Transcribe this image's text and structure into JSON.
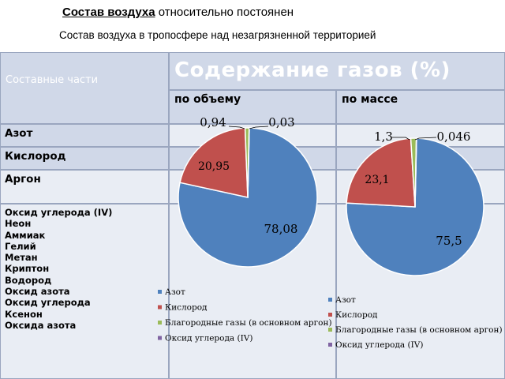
{
  "title": {
    "bold": "Состав воздуха",
    "rest": " относительно постоянен"
  },
  "subtitle": "Состав воздуха в тропосфере над незагрязненной территорией",
  "table": {
    "col_header_components": "Составные части",
    "col_header_gases": "Содержание газов (%)",
    "sub_volume": "по объему",
    "sub_mass": "по массе",
    "rows": [
      "Азот",
      "Кислород",
      "Аргон"
    ],
    "other": [
      "Оксид углерода (IV)",
      "Неон",
      "Аммиак",
      "Гелий",
      "Метан",
      "Криптон",
      "Водород",
      "Оксид азота",
      "Оксид углерода",
      "Ксенон",
      "Оксида азота"
    ]
  },
  "colors": {
    "nitrogen": "#4f81bd",
    "oxygen": "#c0504d",
    "noble": "#9bbb59",
    "co2": "#8064a2"
  },
  "chart_data": [
    {
      "type": "pie",
      "title": "по объему",
      "categories": [
        "Азот",
        "Кислород",
        "Благородные газы (в основном аргон)",
        "Оксид углерода (IV)"
      ],
      "values": [
        78.08,
        20.95,
        0.94,
        0.03
      ],
      "labels": [
        "78,08",
        "20,95",
        "0,94",
        "0,03"
      ],
      "legend": [
        "Азот",
        "Кислород",
        "Благородные газы (в основном аргон)",
        "Оксид углерода (IV)"
      ]
    },
    {
      "type": "pie",
      "title": "по массе",
      "categories": [
        "Азот",
        "Кислород",
        "Благородные газы (в основном аргон)",
        "Оксид углерода (IV)"
      ],
      "values": [
        75.5,
        23.1,
        1.3,
        0.046
      ],
      "labels": [
        "75,5",
        "23,1",
        "1,3",
        "0,046"
      ],
      "legend": [
        "Азот",
        "Кислород",
        "Благородные газы (в основном аргон)",
        "Оксид углерода (IV)"
      ]
    }
  ]
}
